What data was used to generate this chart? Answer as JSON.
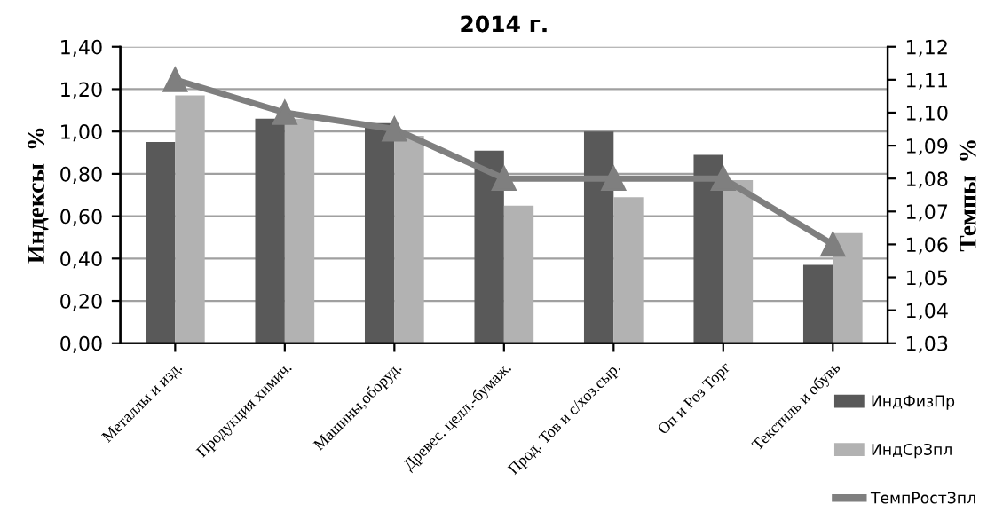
{
  "chart_data": {
    "type": "bar",
    "title": "2014 г.",
    "ylabel": "Индексы  %",
    "y2label": "Темпы  %",
    "categories": [
      "Металлы и изд.",
      "Продукция химич.",
      "Машины,оборуд.",
      "Древес. целл.-бумаж.",
      "Прод. Тов и с/хоз.сыр.",
      "Оп и Роз Торг",
      "Текстиль и обувь"
    ],
    "series": [
      {
        "name": "ИндФизПр",
        "color": "#595959",
        "values": [
          0.95,
          1.06,
          1.04,
          0.91,
          1.0,
          0.89,
          0.37
        ]
      },
      {
        "name": "ИндСрЗпл",
        "color": "#b2b2b2",
        "values": [
          1.17,
          1.06,
          0.98,
          0.65,
          0.69,
          0.77,
          0.52
        ]
      },
      {
        "name": "ТемпРостЗпл",
        "type": "line",
        "axis": "y2",
        "color": "#7f7f7f",
        "marker": "triangle",
        "values": [
          1.11,
          1.1,
          1.095,
          1.08,
          1.08,
          1.08,
          1.06
        ]
      }
    ],
    "ylim": [
      0,
      1.4
    ],
    "yticks": [
      {
        "value": 0,
        "label": "0,00"
      },
      {
        "value": 0.2,
        "label": "0,20"
      },
      {
        "value": 0.4,
        "label": "0,40"
      },
      {
        "value": 0.6,
        "label": "0,60"
      },
      {
        "value": 0.8,
        "label": "0,80"
      },
      {
        "value": 1.0,
        "label": "1,00"
      },
      {
        "value": 1.2,
        "label": "1,20"
      },
      {
        "value": 1.4,
        "label": "1,40"
      }
    ],
    "y2lim": [
      1.03,
      1.12
    ],
    "y2ticks": [
      {
        "value": 1.03,
        "label": "1,03"
      },
      {
        "value": 1.04,
        "label": "1,04"
      },
      {
        "value": 1.05,
        "label": "1,05"
      },
      {
        "value": 1.06,
        "label": "1,06"
      },
      {
        "value": 1.07,
        "label": "1,07"
      },
      {
        "value": 1.08,
        "label": "1,08"
      },
      {
        "value": 1.09,
        "label": "1,09"
      },
      {
        "value": 1.1,
        "label": "1,10"
      },
      {
        "value": 1.11,
        "label": "1,11"
      },
      {
        "value": 1.12,
        "label": "1,12"
      }
    ],
    "grid": "y",
    "legend": "right"
  }
}
